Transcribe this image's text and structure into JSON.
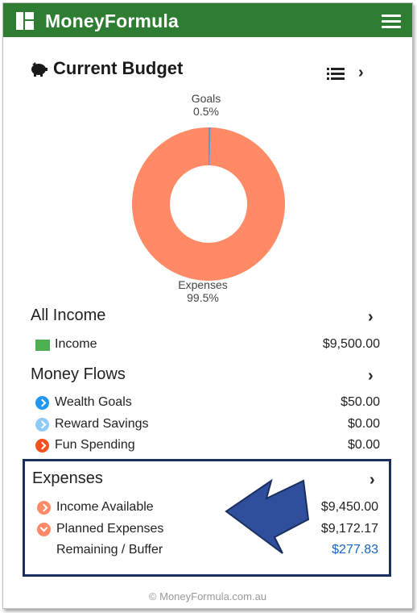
{
  "app": {
    "brand": "MoneyFormula",
    "footer": "© MoneyFormula.com.au"
  },
  "budget": {
    "title": "Current Budget",
    "donut": {
      "slices": [
        {
          "label": "Goals",
          "percent_text": "0.5%",
          "value": 0.5,
          "color": "#5b9bd5"
        },
        {
          "label": "Expenses",
          "percent_text": "99.5%",
          "value": 99.5,
          "color": "#ff8a65"
        }
      ]
    }
  },
  "income": {
    "title": "All Income",
    "rows": [
      {
        "label": "Income",
        "value": "$9,500.00",
        "color": "#4caf50"
      }
    ]
  },
  "money_flows": {
    "title": "Money Flows",
    "rows": [
      {
        "label": "Wealth Goals",
        "value": "$50.00",
        "color": "#2196f3"
      },
      {
        "label": "Reward Savings",
        "value": "$0.00",
        "color": "#90caf9"
      },
      {
        "label": "Fun Spending",
        "value": "$0.00",
        "color": "#f4511e"
      }
    ]
  },
  "expenses": {
    "title": "Expenses",
    "rows": [
      {
        "label": "Income Available",
        "value": "$9,450.00",
        "color": "#ff8a65"
      },
      {
        "label": "Planned Expenses",
        "value": "$9,172.17",
        "color": "#ff8a65"
      },
      {
        "label": "Remaining / Buffer",
        "value": "$277.83",
        "value_color": "#1565c0"
      }
    ]
  },
  "icons": {
    "logo": "grid-logo-icon",
    "menu": "hamburger-menu-icon",
    "budget": "piggy-bank-icon",
    "list": "list-view-icon",
    "chevron": "chevron-right-icon"
  }
}
